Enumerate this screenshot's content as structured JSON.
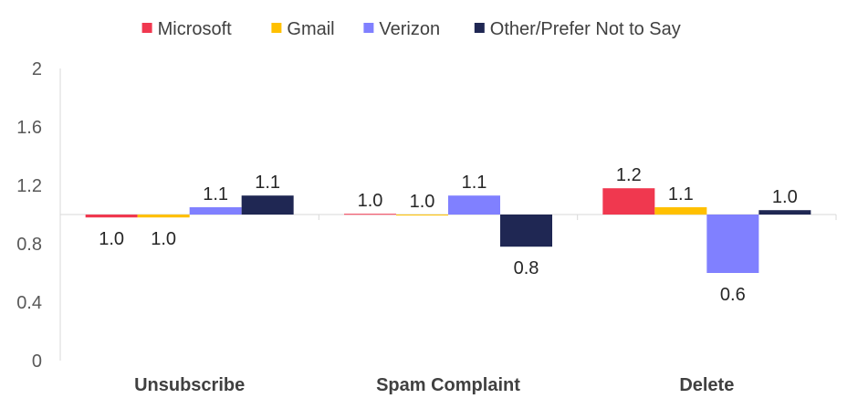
{
  "chart_data": {
    "type": "bar",
    "baseline": 1.0,
    "categories": [
      "Unsubscribe",
      "Spam Complaint",
      "Delete"
    ],
    "series": [
      {
        "name": "Microsoft",
        "color": "#F0384F",
        "values": [
          0.98,
          1.005,
          1.18
        ],
        "labels": [
          "1.0",
          "1.0",
          "1.2"
        ]
      },
      {
        "name": "Gmail",
        "color": "#FFC000",
        "values": [
          0.98,
          1.0,
          1.05
        ],
        "labels": [
          "1.0",
          "1.0",
          "1.1"
        ]
      },
      {
        "name": "Verizon",
        "color": "#8080FF",
        "values": [
          1.05,
          1.13,
          0.6
        ],
        "labels": [
          "1.1",
          "1.1",
          "0.6"
        ]
      },
      {
        "name": "Other/Prefer Not to Say",
        "color": "#1F2753",
        "values": [
          1.13,
          0.78,
          1.03
        ],
        "labels": [
          "1.1",
          "0.8",
          "1.0"
        ]
      }
    ],
    "yticks": [
      "0",
      "0.4",
      "0.8",
      "1.2",
      "1.6",
      "2"
    ],
    "ylim": [
      0,
      2
    ],
    "grid": false,
    "legend_position": "top"
  }
}
